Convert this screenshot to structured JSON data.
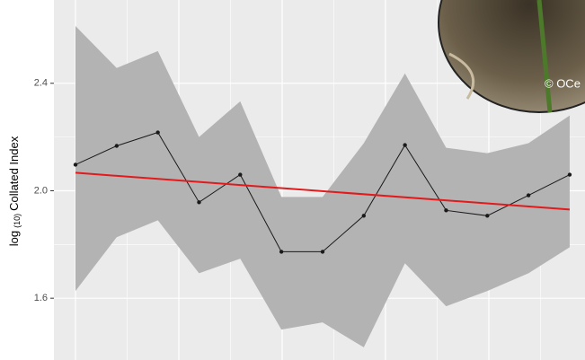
{
  "chart_data": {
    "type": "line",
    "y_label": {
      "main": "log",
      "sub": "(10)",
      "rest": "Collated Index"
    },
    "categories": [
      null,
      null,
      null,
      null,
      null,
      null,
      null,
      null,
      null,
      null,
      null,
      null,
      null
    ],
    "values": [
      2.097,
      2.167,
      2.217,
      1.957,
      2.06,
      1.773,
      1.773,
      1.907,
      2.17,
      1.927,
      1.907,
      1.983,
      2.06
    ],
    "band_upper": [
      2.613,
      2.457,
      2.52,
      2.2,
      2.333,
      1.977,
      1.977,
      2.177,
      2.437,
      2.16,
      2.14,
      2.177,
      2.28
    ],
    "band_lower": [
      1.627,
      1.827,
      1.89,
      1.693,
      1.747,
      1.483,
      1.51,
      1.417,
      1.73,
      1.57,
      1.627,
      1.693,
      1.79
    ],
    "trend_values": [
      2.067,
      1.93
    ],
    "color": "#1a1a1a",
    "band_color": "#b3b3b3",
    "trend_color": "#e31a1c",
    "ylim": [
      1.37,
      2.71
    ],
    "yticks": [
      2.4,
      {
        "value": 2.0,
        "label": "2.0"
      },
      1.6
    ],
    "grid": true,
    "photo_credit": "© OCe"
  }
}
